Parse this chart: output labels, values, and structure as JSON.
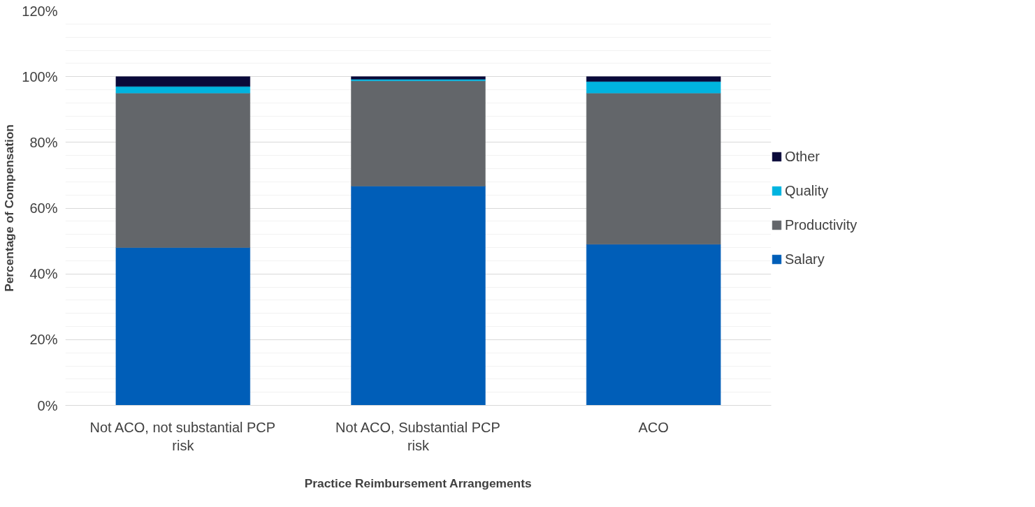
{
  "chart_data": {
    "type": "bar",
    "stacked": true,
    "xlabel": "Practice Reimbursement Arrangements",
    "ylabel": "Percentage of Compensation",
    "categories": [
      "Not ACO, not substantial PCP risk",
      "Not ACO, Substantial PCP risk",
      "ACO"
    ],
    "series": [
      {
        "name": "Salary",
        "color": "#005eb8",
        "values": [
          48,
          66.7,
          49
        ]
      },
      {
        "name": "Productivity",
        "color": "#63666a",
        "values": [
          47,
          32,
          46
        ]
      },
      {
        "name": "Quality",
        "color": "#00b4e0",
        "values": [
          2,
          0.5,
          3.5
        ]
      },
      {
        "name": "Other",
        "color": "#0a0a3a",
        "values": [
          3,
          0.8,
          1.5
        ]
      }
    ],
    "ylim": [
      0,
      120
    ],
    "yticks": [
      {
        "value": 0,
        "label": "0%"
      },
      {
        "value": 20,
        "label": "20%"
      },
      {
        "value": 40,
        "label": "40%"
      },
      {
        "value": 60,
        "label": "60%"
      },
      {
        "value": 80,
        "label": "80%"
      },
      {
        "value": 100,
        "label": "100%"
      },
      {
        "value": 120,
        "label": "120%"
      }
    ],
    "grid": "y",
    "legend": "right"
  }
}
